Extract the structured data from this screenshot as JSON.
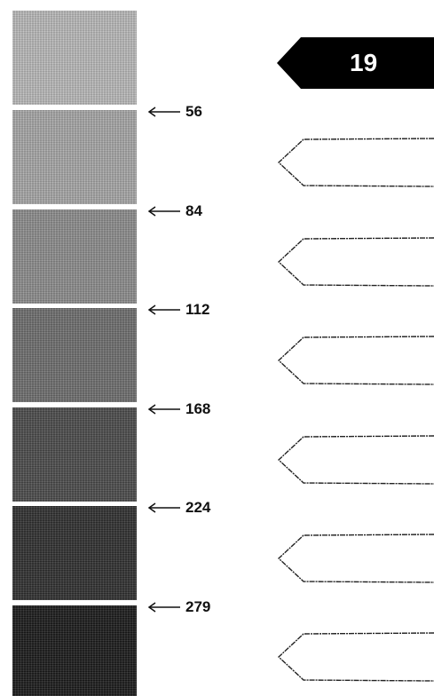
{
  "active_tab": {
    "label": "19",
    "color": "#000000"
  },
  "swatches": [
    {
      "color": "#bcbcbc"
    },
    {
      "color": "#a9a9a9"
    },
    {
      "color": "#8e8e8e"
    },
    {
      "color": "#6f6f6f"
    },
    {
      "color": "#4c4c4c"
    },
    {
      "color": "#303030"
    },
    {
      "color": "#1a1a1a"
    }
  ],
  "markers": [
    {
      "label": "56"
    },
    {
      "label": "84"
    },
    {
      "label": "112"
    },
    {
      "label": "168"
    },
    {
      "label": "224"
    },
    {
      "label": "279"
    }
  ],
  "outline_tabs": [
    {
      "label": ""
    },
    {
      "label": ""
    },
    {
      "label": ""
    },
    {
      "label": ""
    },
    {
      "label": ""
    },
    {
      "label": ""
    }
  ]
}
